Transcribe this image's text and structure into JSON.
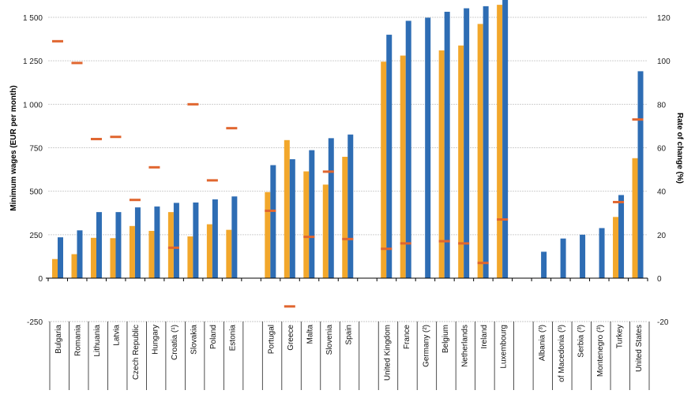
{
  "chart_data": {
    "type": "bar",
    "title": "",
    "ylabel": "Minimum wages (EUR per month)",
    "y2label": "Rate of change (%)",
    "ylim": [
      -250,
      1500
    ],
    "y2lim": [
      -20,
      120
    ],
    "yticks": [
      "-250",
      "0",
      "250",
      "500",
      "750",
      "1 000",
      "1 250",
      "1 500"
    ],
    "y2ticks": [
      "-20",
      "0",
      "20",
      "40",
      "60",
      "80",
      "100",
      "120"
    ],
    "grid": true,
    "categories": [
      "Bulgaria",
      "Romania",
      "Lithuania",
      "Latvia",
      "Czech Republic",
      "Hungary",
      "Croatia (¹)",
      "Slovakia",
      "Poland",
      "Estonia",
      "",
      "Portugal",
      "Greece",
      "Malta",
      "Slovenia",
      "Spain",
      "",
      "United Kingdom",
      "France",
      "Germany (²)",
      "Belgium",
      "Netherlands",
      "Ireland",
      "Luxembourg",
      "",
      "Albania (³)",
      "of Macedonia (³)",
      "Serbia (³)",
      "Montenegro (³)",
      "Turkey",
      "United States"
    ],
    "series": [
      {
        "name": "series_1",
        "axis": "left",
        "kind": "bar",
        "color": "#F2A72B",
        "values": [
          110,
          138,
          232,
          230,
          300,
          272,
          380,
          240,
          310,
          278,
          null,
          495,
          794,
          614,
          538,
          698,
          null,
          1245,
          1280,
          null,
          1310,
          1338,
          1462,
          1572,
          null,
          null,
          null,
          null,
          null,
          352,
          690
        ]
      },
      {
        "name": "series_2",
        "axis": "left",
        "kind": "bar",
        "color": "#2E6DB4",
        "values": [
          235,
          275,
          380,
          380,
          407,
          412,
          433,
          435,
          453,
          470,
          null,
          650,
          684,
          736,
          805,
          826,
          null,
          1400,
          1480,
          1498,
          1532,
          1552,
          1564,
          1620,
          null,
          152,
          228,
          250,
          288,
          478,
          1190
        ]
      },
      {
        "name": "rate_of_change",
        "axis": "right",
        "kind": "marker",
        "color": "#E0662F",
        "values": [
          109,
          99,
          64,
          65,
          36,
          51,
          14,
          80,
          45,
          69,
          null,
          31,
          -13,
          19,
          49,
          18,
          null,
          13.5,
          16,
          null,
          17,
          16,
          7,
          27,
          null,
          null,
          null,
          null,
          null,
          35,
          73
        ]
      }
    ]
  }
}
